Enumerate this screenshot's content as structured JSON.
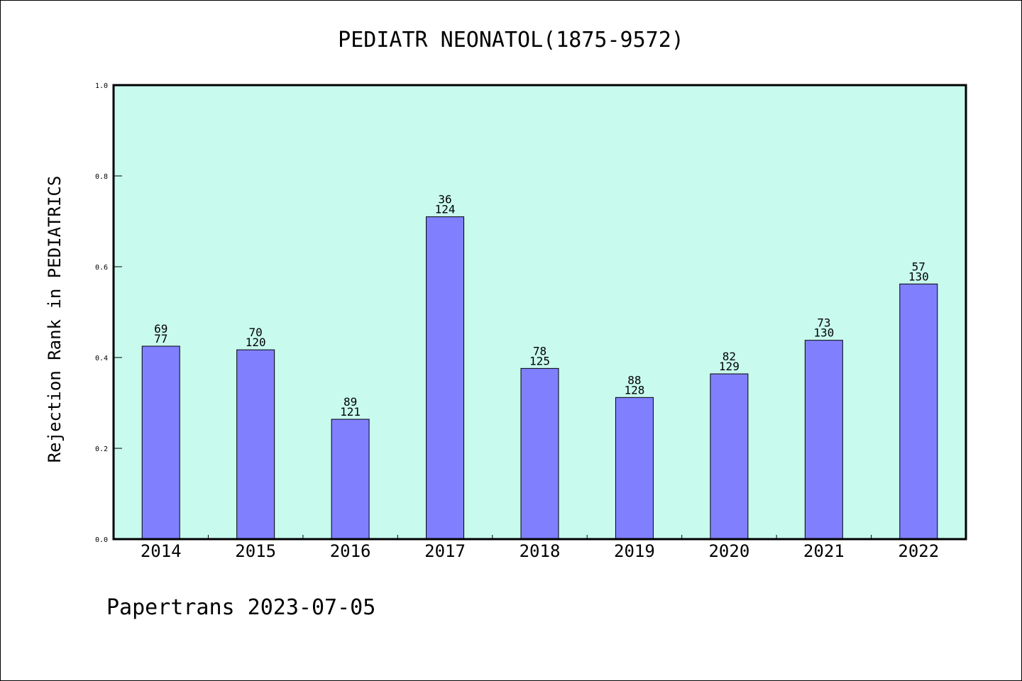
{
  "chart_data": {
    "type": "bar",
    "title": "PEDIATR NEONATOL(1875-9572)",
    "xlabel": "",
    "ylabel": "Rejection Rank in PEDIATRICS",
    "ylim": [
      0,
      1.0
    ],
    "yticks": [
      "0.0",
      "0.2",
      "0.4",
      "0.6",
      "0.8",
      "1.0"
    ],
    "categories": [
      "2014",
      "2015",
      "2016",
      "2017",
      "2018",
      "2019",
      "2020",
      "2021",
      "2022"
    ],
    "values": [
      0.425,
      0.417,
      0.264,
      0.71,
      0.376,
      0.312,
      0.364,
      0.438,
      0.562
    ],
    "labels_top": [
      "69",
      "70",
      "89",
      "36",
      "78",
      "88",
      "82",
      "73",
      "57"
    ],
    "labels_bottom": [
      "77",
      "120",
      "121",
      "124",
      "125",
      "128",
      "129",
      "130",
      "130"
    ],
    "grid": false,
    "colors": {
      "bar": "#8080ff",
      "plot_bg": "#c8faee"
    }
  },
  "footer": "Papertrans 2023-07-05"
}
